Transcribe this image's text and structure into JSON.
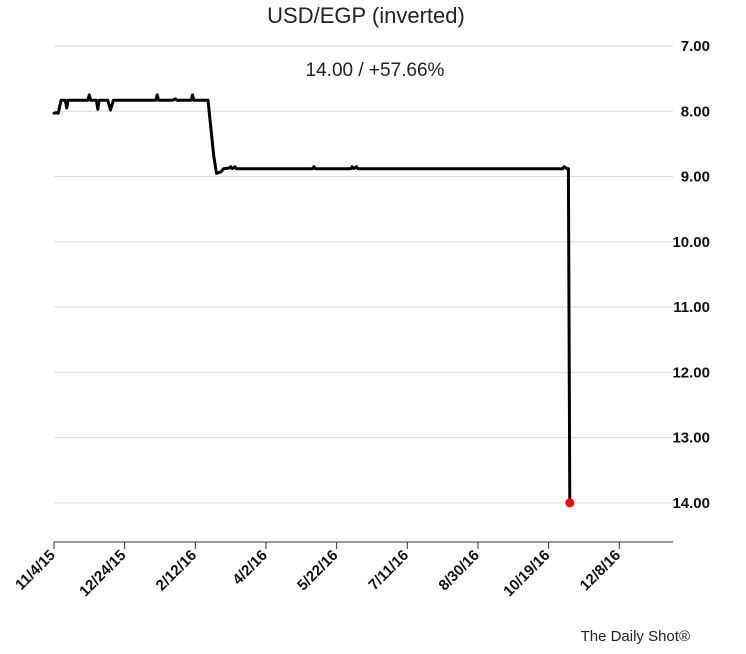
{
  "chart_data": {
    "type": "line",
    "title": "USD/EGP (inverted)",
    "subtitle": "14.00  /  +57.66%",
    "source": "The Daily Shot®",
    "y_inverted": true,
    "ylim": [
      7.0,
      14.6
    ],
    "xlim": [
      "2015-11-04",
      "2017-01-15"
    ],
    "y_ticks": [
      {
        "value": 7,
        "label": "7.00"
      },
      {
        "value": 8,
        "label": "8.00"
      },
      {
        "value": 9,
        "label": "9.00"
      },
      {
        "value": 10,
        "label": "10.00"
      },
      {
        "value": 11,
        "label": "11.00"
      },
      {
        "value": 12,
        "label": "12.00"
      },
      {
        "value": 13,
        "label": "13.00"
      },
      {
        "value": 14,
        "label": "14.00"
      }
    ],
    "x_ticks": [
      {
        "date": "2015-11-04",
        "label": "11/4/15"
      },
      {
        "date": "2015-12-24",
        "label": "12/24/15"
      },
      {
        "date": "2016-02-12",
        "label": "2/12/16"
      },
      {
        "date": "2016-04-02",
        "label": "4/2/16"
      },
      {
        "date": "2016-05-22",
        "label": "5/22/16"
      },
      {
        "date": "2016-07-11",
        "label": "7/11/16"
      },
      {
        "date": "2016-08-30",
        "label": "8/30/16"
      },
      {
        "date": "2016-10-19",
        "label": "10/19/16"
      },
      {
        "date": "2016-12-08",
        "label": "12/8/16"
      }
    ],
    "grid": true,
    "series": [
      {
        "color": "#000000",
        "points": [
          [
            "2015-11-04",
            8.03
          ],
          [
            "2015-11-06",
            8.02
          ],
          [
            "2015-11-07",
            8.03
          ],
          [
            "2015-11-09",
            7.83
          ],
          [
            "2015-11-12",
            7.83
          ],
          [
            "2015-11-13",
            7.95
          ],
          [
            "2015-11-14",
            7.83
          ],
          [
            "2015-11-28",
            7.83
          ],
          [
            "2015-11-29",
            7.75
          ],
          [
            "2015-11-30",
            7.83
          ],
          [
            "2015-12-04",
            7.83
          ],
          [
            "2015-12-05",
            7.97
          ],
          [
            "2015-12-06",
            7.83
          ],
          [
            "2015-12-12",
            7.83
          ],
          [
            "2015-12-14",
            7.98
          ],
          [
            "2015-12-16",
            7.83
          ],
          [
            "2016-01-15",
            7.83
          ],
          [
            "2016-01-16",
            7.75
          ],
          [
            "2016-01-17",
            7.83
          ],
          [
            "2016-01-27",
            7.83
          ],
          [
            "2016-01-29",
            7.81
          ],
          [
            "2016-01-30",
            7.83
          ],
          [
            "2016-02-09",
            7.83
          ],
          [
            "2016-02-10",
            7.75
          ],
          [
            "2016-02-11",
            7.83
          ],
          [
            "2016-02-21",
            7.83
          ],
          [
            "2016-02-25",
            8.68
          ],
          [
            "2016-02-27",
            8.95
          ],
          [
            "2016-03-01",
            8.93
          ],
          [
            "2016-03-03",
            8.88
          ],
          [
            "2016-03-07",
            8.87
          ],
          [
            "2016-03-08",
            8.85
          ],
          [
            "2016-03-09",
            8.88
          ],
          [
            "2016-03-11",
            8.85
          ],
          [
            "2016-03-12",
            8.88
          ],
          [
            "2016-05-05",
            8.88
          ],
          [
            "2016-05-06",
            8.85
          ],
          [
            "2016-05-07",
            8.88
          ],
          [
            "2016-06-01",
            8.88
          ],
          [
            "2016-06-02",
            8.85
          ],
          [
            "2016-06-03",
            8.88
          ],
          [
            "2016-06-05",
            8.85
          ],
          [
            "2016-06-06",
            8.88
          ],
          [
            "2016-10-29",
            8.88
          ],
          [
            "2016-10-30",
            8.85
          ],
          [
            "2016-11-01",
            8.88
          ],
          [
            "2016-11-02",
            8.88
          ],
          [
            "2016-11-03",
            14.0
          ]
        ]
      }
    ],
    "last_point": {
      "date": "2016-11-03",
      "value": 14.0,
      "color": "#ff0000"
    }
  }
}
